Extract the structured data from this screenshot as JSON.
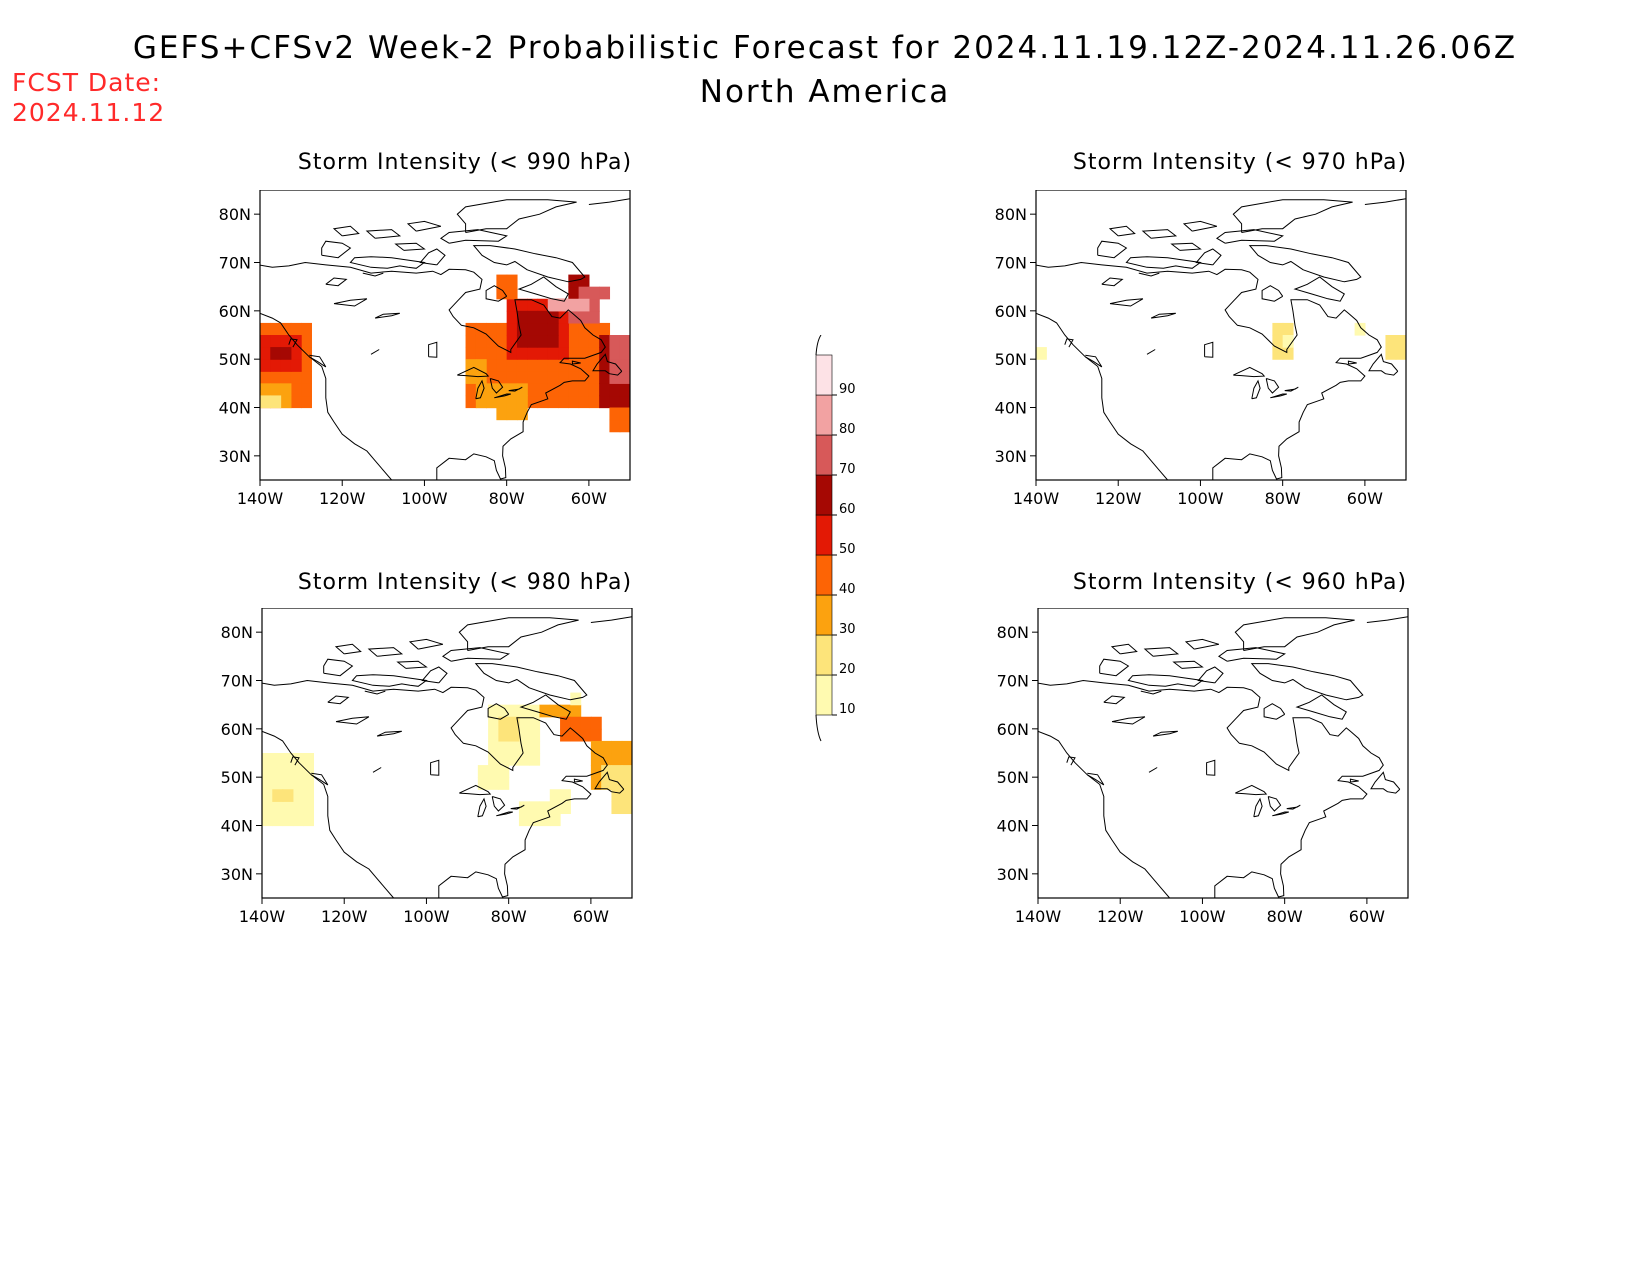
{
  "header": {
    "title_line1": "GEFS+CFSv2 Week-2 Probabilistic Forecast for 2024.11.19.12Z-2024.11.26.06Z",
    "title_line2": "North America",
    "fcst_label": "FCST Date:",
    "fcst_date": "2024.11.12"
  },
  "axes": {
    "lat_ticks": [
      "80N",
      "70N",
      "60N",
      "50N",
      "40N",
      "30N"
    ],
    "lon_ticks": [
      "140W",
      "120W",
      "100W",
      "80W",
      "60W"
    ],
    "lat_values": [
      80,
      70,
      60,
      50,
      40,
      30
    ],
    "lon_values": [
      -140,
      -120,
      -100,
      -80,
      -60
    ],
    "lon_range": [
      -140,
      -50
    ],
    "lat_range": [
      25,
      85
    ]
  },
  "panels": [
    {
      "title": "Storm Intensity (< 990 hPa)",
      "threshold_hpa": 990
    },
    {
      "title": "Storm Intensity (< 970 hPa)",
      "threshold_hpa": 970
    },
    {
      "title": "Storm Intensity (< 980 hPa)",
      "threshold_hpa": 980
    },
    {
      "title": "Storm Intensity (< 960 hPa)",
      "threshold_hpa": 960
    }
  ],
  "colorbar": {
    "labels": [
      "90",
      "80",
      "70",
      "60",
      "50",
      "40",
      "30",
      "20",
      "10"
    ],
    "levels": [
      10,
      20,
      30,
      40,
      50,
      60,
      70,
      80,
      90
    ],
    "colors": [
      "#fffab0",
      "#fde47a",
      "#fca20f",
      "#fd6405",
      "#e31905",
      "#a50803",
      "#d75959",
      "#f2a2a2",
      "#fde2e6"
    ]
  }
}
